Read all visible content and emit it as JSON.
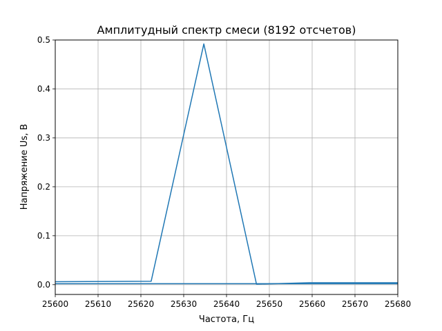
{
  "chart_data": {
    "type": "line",
    "title": "Амплитудный спектр смеси (8192 отсчетов)",
    "xlabel": "Частота, Гц",
    "ylabel": "Напряжение Us, В",
    "xlim": [
      25600,
      25680
    ],
    "ylim": [
      -0.02,
      0.5
    ],
    "xticks": [
      25600,
      25610,
      25620,
      25630,
      25640,
      25650,
      25660,
      25670,
      25680
    ],
    "yticks": [
      0.0,
      0.1,
      0.2,
      0.3,
      0.4,
      0.5
    ],
    "xtick_labels": [
      "25600",
      "25610",
      "25620",
      "25630",
      "25640",
      "25650",
      "25660",
      "25670",
      "25680"
    ],
    "ytick_labels": [
      "0.0",
      "0.1",
      "0.2",
      "0.3",
      "0.4",
      "0.5"
    ],
    "grid": true,
    "series": [
      {
        "color": "#1f77b4",
        "x": [
          25600,
          25622.4,
          25634.7,
          25647.0,
          25659.3,
          25680
        ],
        "y": [
          0.006,
          0.007,
          0.492,
          0.001,
          0.004,
          0.004
        ]
      },
      {
        "color": "#1f77b4",
        "x": [
          25600,
          25680
        ],
        "y": [
          0.002,
          0.002
        ]
      }
    ]
  }
}
